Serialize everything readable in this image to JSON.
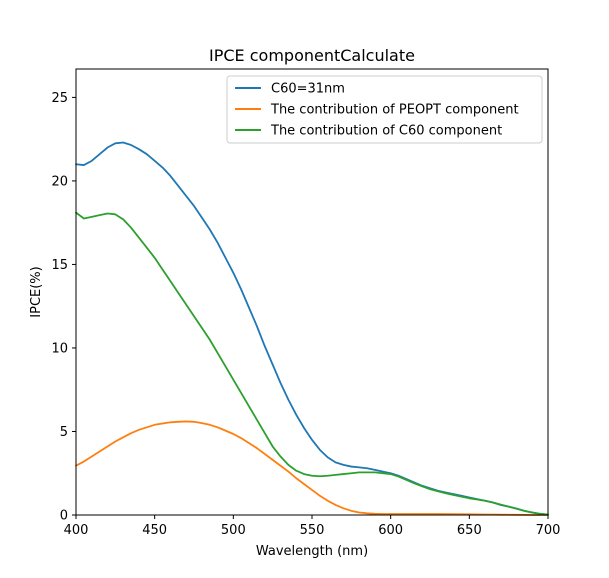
{
  "chart_data": {
    "type": "line",
    "title": "IPCE componentCalculate",
    "xlabel": "Wavelength (nm)",
    "ylabel": "IPCE(%)",
    "xlim": [
      400,
      700
    ],
    "ylim": [
      0,
      26.7
    ],
    "xticks": [
      400,
      450,
      500,
      550,
      600,
      650,
      700
    ],
    "yticks": [
      0,
      5,
      10,
      15,
      20,
      25
    ],
    "grid": false,
    "legend_position": "top-right",
    "series": [
      {
        "name": "C60=31nm",
        "color": "#1f77b4",
        "x": [
          400,
          405,
          410,
          415,
          420,
          425,
          430,
          435,
          440,
          445,
          450,
          455,
          460,
          465,
          470,
          475,
          480,
          485,
          490,
          495,
          500,
          505,
          510,
          515,
          520,
          525,
          530,
          535,
          540,
          545,
          550,
          555,
          560,
          565,
          570,
          575,
          580,
          585,
          590,
          595,
          600,
          605,
          610,
          615,
          620,
          625,
          630,
          635,
          640,
          645,
          650,
          655,
          660,
          665,
          670,
          675,
          680,
          685,
          690,
          695,
          700
        ],
        "y": [
          21.0,
          20.95,
          21.2,
          21.6,
          22.0,
          22.25,
          22.3,
          22.15,
          21.9,
          21.6,
          21.2,
          20.8,
          20.3,
          19.7,
          19.1,
          18.5,
          17.8,
          17.1,
          16.3,
          15.4,
          14.5,
          13.5,
          12.4,
          11.3,
          10.1,
          9.0,
          7.9,
          6.9,
          6.0,
          5.2,
          4.5,
          3.9,
          3.45,
          3.15,
          3.0,
          2.9,
          2.85,
          2.8,
          2.7,
          2.6,
          2.5,
          2.35,
          2.15,
          1.95,
          1.75,
          1.6,
          1.45,
          1.35,
          1.25,
          1.15,
          1.05,
          0.95,
          0.85,
          0.75,
          0.6,
          0.5,
          0.38,
          0.25,
          0.15,
          0.07,
          0.02
        ]
      },
      {
        "name": "The contribution of PEOPT component",
        "color": "#ff7f0e",
        "x": [
          400,
          405,
          410,
          415,
          420,
          425,
          430,
          435,
          440,
          445,
          450,
          455,
          460,
          465,
          470,
          475,
          480,
          485,
          490,
          495,
          500,
          505,
          510,
          515,
          520,
          525,
          530,
          535,
          540,
          545,
          550,
          555,
          560,
          565,
          570,
          575,
          580,
          585,
          590,
          595,
          600,
          610,
          620,
          630,
          640,
          650,
          660,
          670,
          680,
          690,
          700
        ],
        "y": [
          2.95,
          3.2,
          3.5,
          3.8,
          4.1,
          4.4,
          4.65,
          4.9,
          5.1,
          5.25,
          5.4,
          5.48,
          5.55,
          5.58,
          5.6,
          5.58,
          5.5,
          5.4,
          5.25,
          5.05,
          4.85,
          4.6,
          4.3,
          4.0,
          3.65,
          3.3,
          2.95,
          2.6,
          2.2,
          1.85,
          1.5,
          1.15,
          0.85,
          0.6,
          0.4,
          0.25,
          0.15,
          0.1,
          0.07,
          0.06,
          0.06,
          0.06,
          0.06,
          0.06,
          0.05,
          0.04,
          0.03,
          0.02,
          0.01,
          0.0,
          0.0
        ]
      },
      {
        "name": "The contribution of C60 component",
        "color": "#2ca02c",
        "x": [
          400,
          405,
          410,
          415,
          420,
          425,
          430,
          435,
          440,
          445,
          450,
          455,
          460,
          465,
          470,
          475,
          480,
          485,
          490,
          495,
          500,
          505,
          510,
          515,
          520,
          525,
          530,
          535,
          540,
          545,
          550,
          555,
          560,
          565,
          570,
          575,
          580,
          585,
          590,
          595,
          600,
          605,
          610,
          615,
          620,
          625,
          630,
          635,
          640,
          645,
          650,
          655,
          660,
          665,
          670,
          675,
          680,
          685,
          690,
          695,
          700
        ],
        "y": [
          18.1,
          17.75,
          17.85,
          17.95,
          18.05,
          18.0,
          17.7,
          17.2,
          16.6,
          16.0,
          15.4,
          14.7,
          14.0,
          13.3,
          12.6,
          11.9,
          11.2,
          10.5,
          9.7,
          8.9,
          8.1,
          7.3,
          6.5,
          5.7,
          4.9,
          4.1,
          3.5,
          3.0,
          2.65,
          2.45,
          2.35,
          2.32,
          2.35,
          2.4,
          2.45,
          2.5,
          2.55,
          2.55,
          2.55,
          2.5,
          2.45,
          2.3,
          2.1,
          1.9,
          1.72,
          1.55,
          1.42,
          1.3,
          1.2,
          1.1,
          1.0,
          0.93,
          0.85,
          0.75,
          0.62,
          0.5,
          0.38,
          0.25,
          0.15,
          0.07,
          0.02
        ]
      }
    ]
  }
}
